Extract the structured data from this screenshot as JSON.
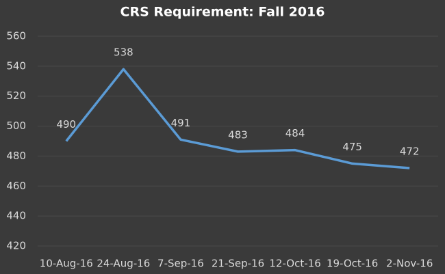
{
  "chart_data": {
    "type": "line",
    "title": "CRS Requirement: Fall 2016",
    "categories": [
      "10-Aug-16",
      "24-Aug-16",
      "7-Sep-16",
      "21-Sep-16",
      "12-Oct-16",
      "19-Oct-16",
      "2-Nov-16"
    ],
    "values": [
      490,
      538,
      491,
      483,
      484,
      475,
      472
    ],
    "color": "#5b9bd5",
    "ylim": [
      420,
      560
    ],
    "yticks": [
      420,
      440,
      460,
      480,
      500,
      520,
      540,
      560
    ],
    "grid": true
  }
}
